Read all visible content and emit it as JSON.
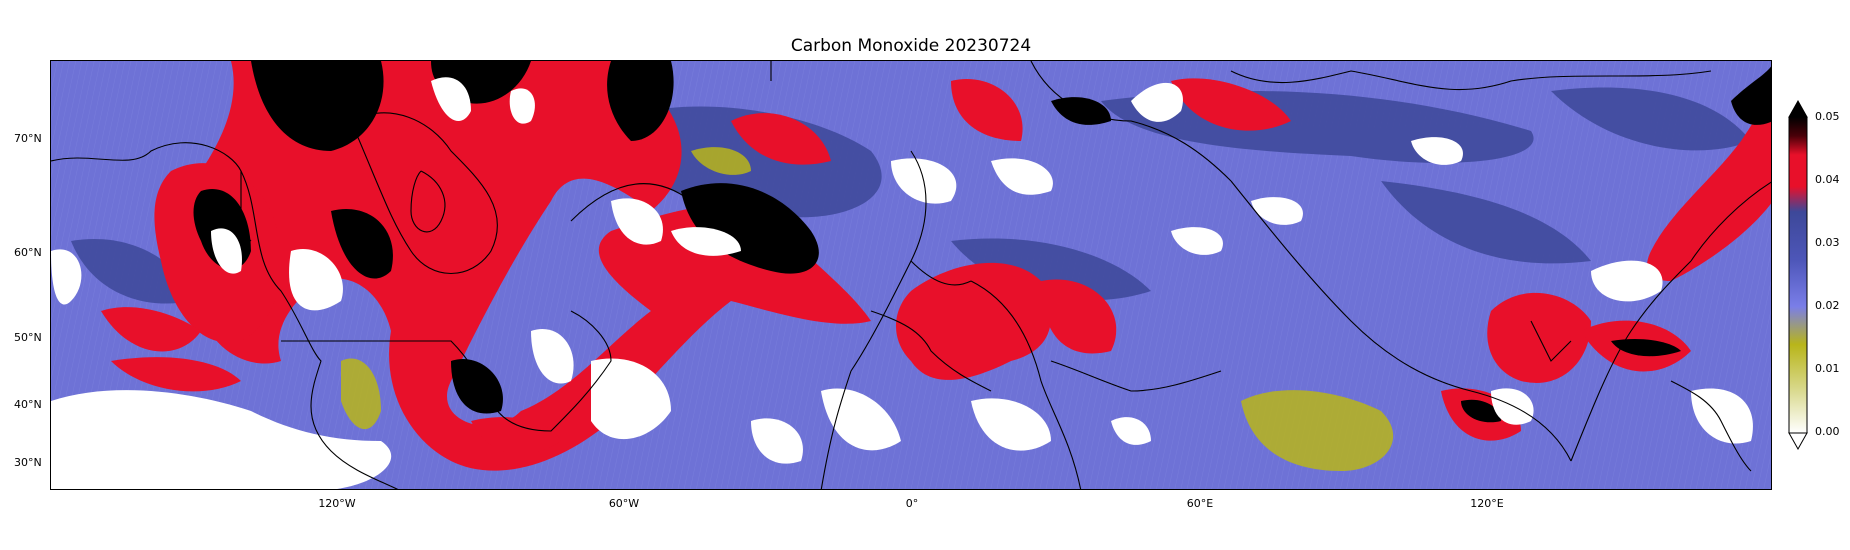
{
  "title": "Carbon Monoxide 20230724",
  "colors": {
    "background_low": "#6e72d6",
    "mid_blue": "#3d4899",
    "high_red": "#e8102a",
    "extreme_black": "#000000",
    "low_yellow": "#b8b51a",
    "cloud_white": "#ffffff"
  },
  "y_axis": {
    "ticks": [
      "70°N",
      "60°N",
      "50°N",
      "40°N",
      "30°N"
    ]
  },
  "x_axis": {
    "ticks": [
      "120°W",
      "60°W",
      "0°",
      "60°E",
      "120°E"
    ]
  },
  "colorbar": {
    "ticks": [
      "0.05",
      "0.04",
      "0.03",
      "0.02",
      "0.01",
      "0.00"
    ],
    "extend": "both"
  }
}
